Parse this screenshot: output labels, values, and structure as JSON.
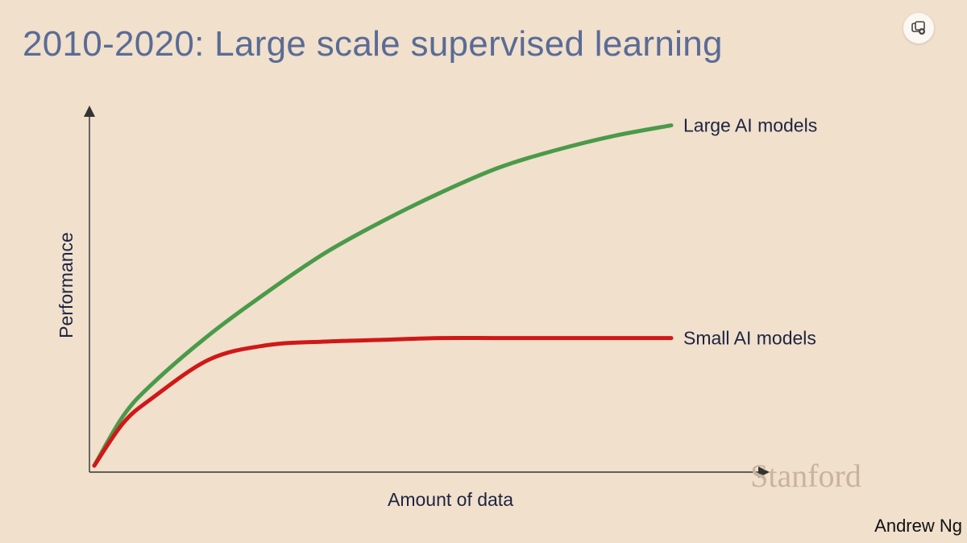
{
  "slide": {
    "title": "2010-2020: Large scale supervised learning",
    "credit": "Andrew Ng",
    "watermark": "Stanford"
  },
  "icons": {
    "corner_button": "picture-in-picture-icon"
  },
  "chart_data": {
    "type": "line",
    "title": "",
    "xlabel": "Amount of data",
    "ylabel": "Performance",
    "xlim": [
      0,
      100
    ],
    "ylim": [
      0,
      100
    ],
    "grid": false,
    "legend": "inline-labels-at-line-ends",
    "series": [
      {
        "name": "Large AI models",
        "color": "#4a9a4a",
        "x": [
          0,
          5,
          10,
          20,
          30,
          40,
          50,
          60,
          70,
          80,
          90,
          100
        ],
        "y": [
          0,
          14,
          23,
          37,
          49,
          60,
          69,
          77,
          84,
          89,
          93,
          96
        ]
      },
      {
        "name": "Small AI models",
        "color": "#d01818",
        "x": [
          0,
          5,
          10,
          20,
          30,
          40,
          50,
          60,
          70,
          80,
          90,
          100
        ],
        "y": [
          0,
          12,
          19,
          30,
          34,
          35,
          35.5,
          36,
          36,
          36,
          36,
          36
        ]
      }
    ]
  }
}
